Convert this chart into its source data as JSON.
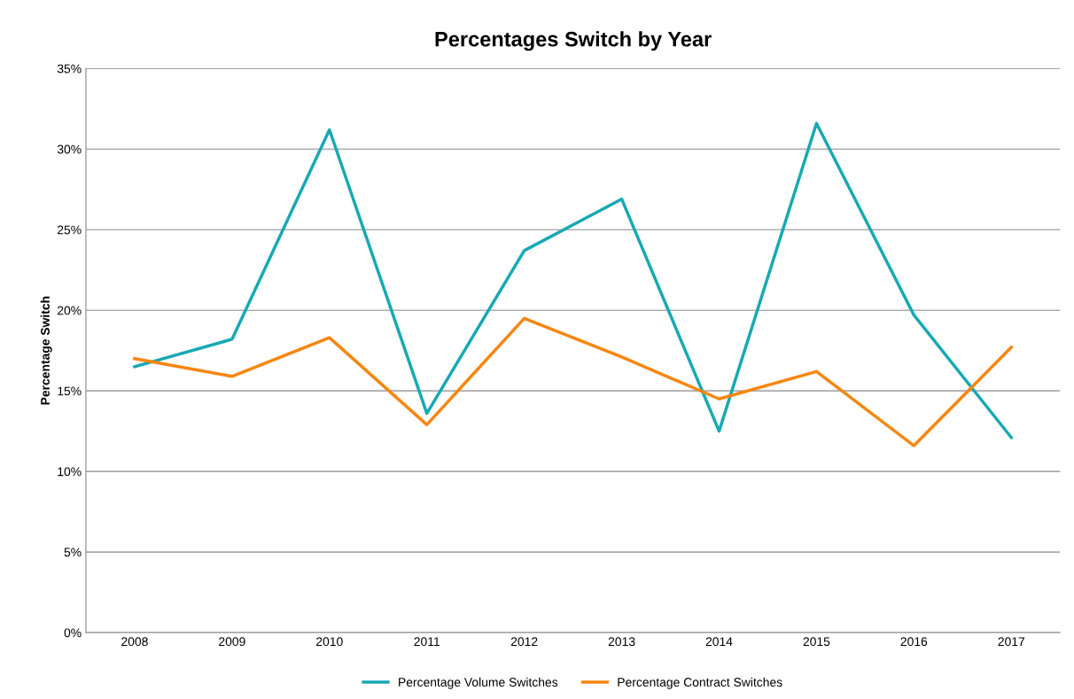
{
  "chart_data": {
    "type": "line",
    "title": "Percentages Switch by Year",
    "ylabel": "Percentage Switch",
    "categories": [
      "2008",
      "2009",
      "2010",
      "2011",
      "2012",
      "2013",
      "2014",
      "2015",
      "2016",
      "2017"
    ],
    "series": [
      {
        "name": "Percentage Volume Switches",
        "color": "#17a9b3",
        "values": [
          16.5,
          18.2,
          31.2,
          13.6,
          23.7,
          26.9,
          12.5,
          31.6,
          19.7,
          12.1
        ]
      },
      {
        "name": "Percentage Contract Switches",
        "color": "#f7860f",
        "values": [
          17.0,
          15.9,
          18.3,
          12.9,
          19.5,
          17.1,
          14.5,
          16.2,
          11.6,
          17.7
        ]
      }
    ],
    "ylim": [
      0,
      35
    ],
    "yticks": [
      {
        "value": 0,
        "label": "0%"
      },
      {
        "value": 5,
        "label": "5%"
      },
      {
        "value": 10,
        "label": "10%"
      },
      {
        "value": 15,
        "label": "15%"
      },
      {
        "value": 20,
        "label": "20%"
      },
      {
        "value": 25,
        "label": "25%"
      },
      {
        "value": 30,
        "label": "30%"
      },
      {
        "value": 35,
        "label": "35%"
      }
    ],
    "grid": "y",
    "legend": "bottom",
    "marker": "none",
    "line_style": "solid"
  }
}
